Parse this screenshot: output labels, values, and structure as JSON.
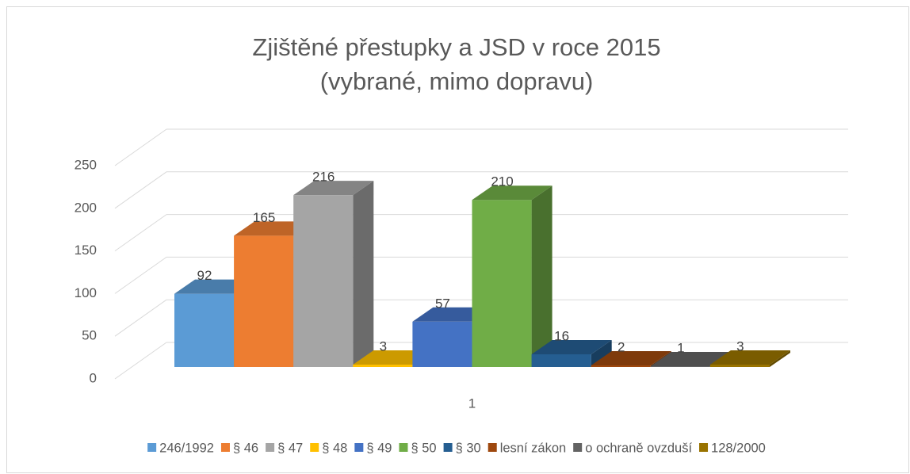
{
  "chart_data": {
    "type": "bar3d",
    "title": [
      "Zjištěné přestupky a JSD v roce 2015",
      "(vybrané, mimo dopravu)"
    ],
    "categories": [
      "1"
    ],
    "series": [
      {
        "name": "246/1992",
        "color": "#5b9bd5",
        "values": [
          92
        ]
      },
      {
        "name": "§ 46",
        "color": "#ed7d31",
        "values": [
          165
        ]
      },
      {
        "name": "§ 47",
        "color": "#a5a5a5",
        "values": [
          216
        ]
      },
      {
        "name": "§ 48",
        "color": "#ffc000",
        "values": [
          3
        ]
      },
      {
        "name": "§ 49",
        "color": "#4472c4",
        "values": [
          57
        ]
      },
      {
        "name": "§ 50",
        "color": "#70ad47",
        "values": [
          210
        ]
      },
      {
        "name": "§ 30",
        "color": "#255e91",
        "values": [
          16
        ]
      },
      {
        "name": "lesní zákon",
        "color": "#9e480e",
        "values": [
          2
        ]
      },
      {
        "name": "o ochraně ovzduší",
        "color": "#636363",
        "values": [
          1
        ]
      },
      {
        "name": "128/2000",
        "color": "#997300",
        "values": [
          3
        ]
      }
    ],
    "ylim": [
      0,
      250
    ],
    "yticks": [
      0,
      50,
      100,
      150,
      200,
      250
    ],
    "grid": true,
    "legend": "bottom"
  }
}
